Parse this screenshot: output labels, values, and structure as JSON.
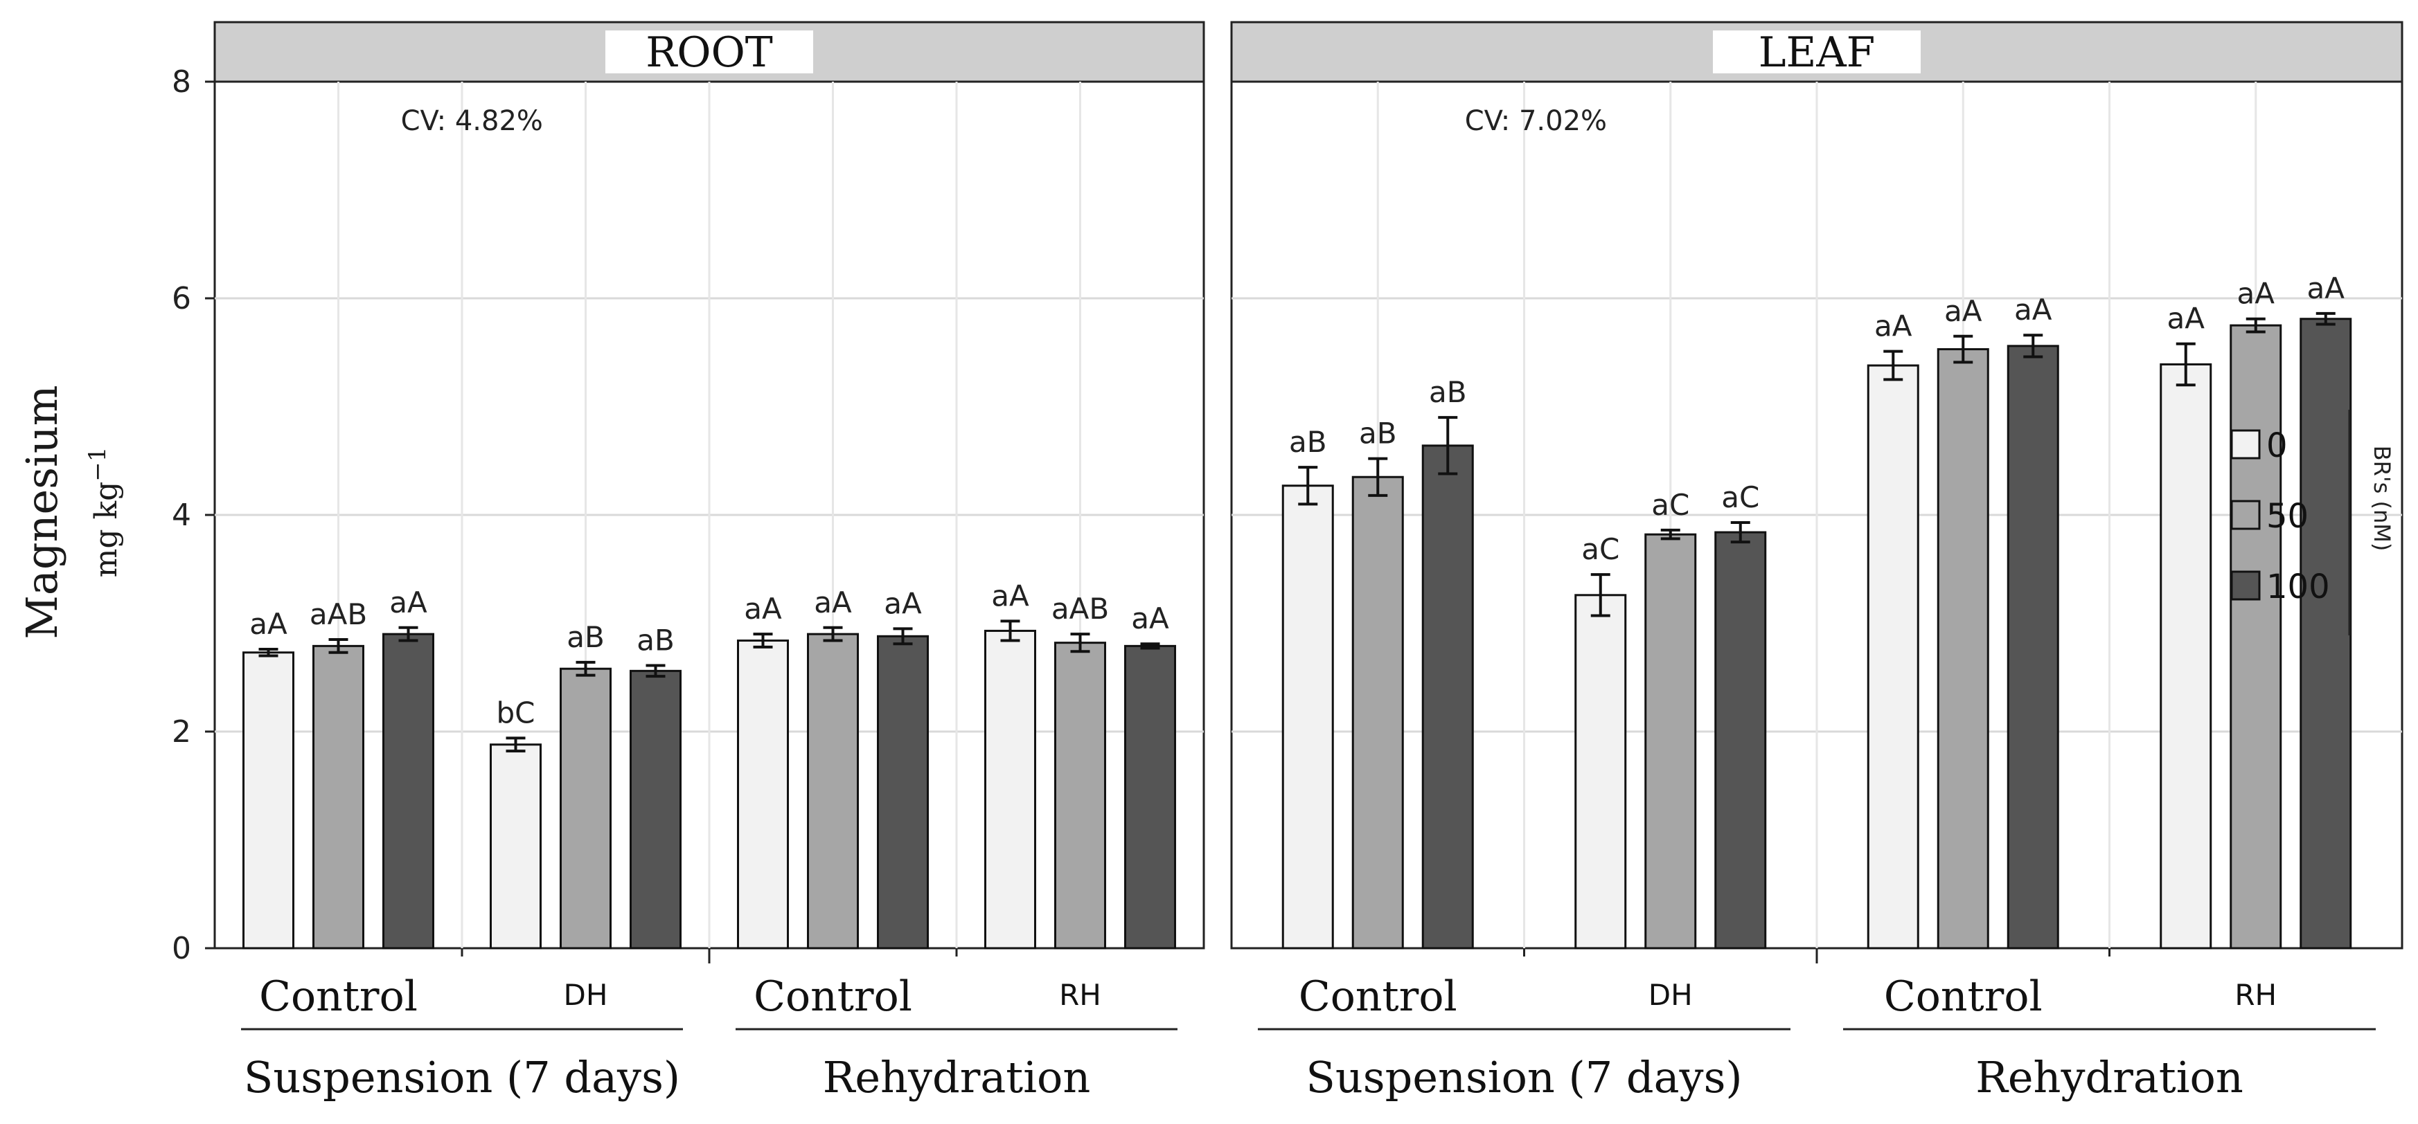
{
  "chart_data": {
    "type": "bar",
    "ylabel": "Magnesium",
    "yunit": "mg kg",
    "yunit_exp": "−1",
    "ylim": [
      0,
      8
    ],
    "yticks": [
      0,
      2,
      4,
      6,
      8
    ],
    "grid": true,
    "legend": {
      "title": "BR's (nM)",
      "position": "right",
      "entries": [
        {
          "label": "0",
          "color": "#f2f2f2"
        },
        {
          "label": "50",
          "color": "#a6a6a6"
        },
        {
          "label": "100",
          "color": "#555555"
        }
      ]
    },
    "panels": [
      {
        "title": "ROOT",
        "cv": "CV: 4.82%",
        "groups": [
          {
            "label": "Control",
            "period": "Suspension (7 days)",
            "values": [
              2.73,
              2.79,
              2.9
            ],
            "errors": [
              0.03,
              0.06,
              0.06
            ],
            "letters": [
              "aA",
              "aAB",
              "aA"
            ]
          },
          {
            "label": "DH",
            "period": "Suspension (7 days)",
            "values": [
              1.88,
              2.58,
              2.56
            ],
            "errors": [
              0.06,
              0.06,
              0.05
            ],
            "letters": [
              "bC",
              "aB",
              "aB"
            ]
          },
          {
            "label": "Control",
            "period": "Rehydration",
            "values": [
              2.84,
              2.9,
              2.88
            ],
            "errors": [
              0.06,
              0.06,
              0.07
            ],
            "letters": [
              "aA",
              "aA",
              "aA"
            ]
          },
          {
            "label": "RH",
            "period": "Rehydration",
            "values": [
              2.93,
              2.82,
              2.79
            ],
            "errors": [
              0.09,
              0.08,
              0.02
            ],
            "letters": [
              "aA",
              "aAB",
              "aA"
            ]
          }
        ],
        "periods": [
          "Suspension (7 days)",
          "Rehydration"
        ]
      },
      {
        "title": "LEAF",
        "cv": "CV: 7.02%",
        "groups": [
          {
            "label": "Control",
            "period": "Suspension (7 days)",
            "values": [
              4.27,
              4.35,
              4.64
            ],
            "errors": [
              0.17,
              0.17,
              0.26
            ],
            "letters": [
              "aB",
              "aB",
              "aB"
            ]
          },
          {
            "label": "DH",
            "period": "Suspension (7 days)",
            "values": [
              3.26,
              3.82,
              3.84
            ],
            "errors": [
              0.19,
              0.04,
              0.09
            ],
            "letters": [
              "aC",
              "aC",
              "aC"
            ]
          },
          {
            "label": "Control",
            "period": "Rehydration",
            "values": [
              5.38,
              5.53,
              5.56
            ],
            "errors": [
              0.13,
              0.12,
              0.1
            ],
            "letters": [
              "aA",
              "aA",
              "aA"
            ]
          },
          {
            "label": "RH",
            "period": "Rehydration",
            "values": [
              5.39,
              5.75,
              5.81
            ],
            "errors": [
              0.19,
              0.06,
              0.05
            ],
            "letters": [
              "aA",
              "aA",
              "aA"
            ]
          }
        ],
        "periods": [
          "Suspension (7 days)",
          "Rehydration"
        ]
      }
    ]
  }
}
